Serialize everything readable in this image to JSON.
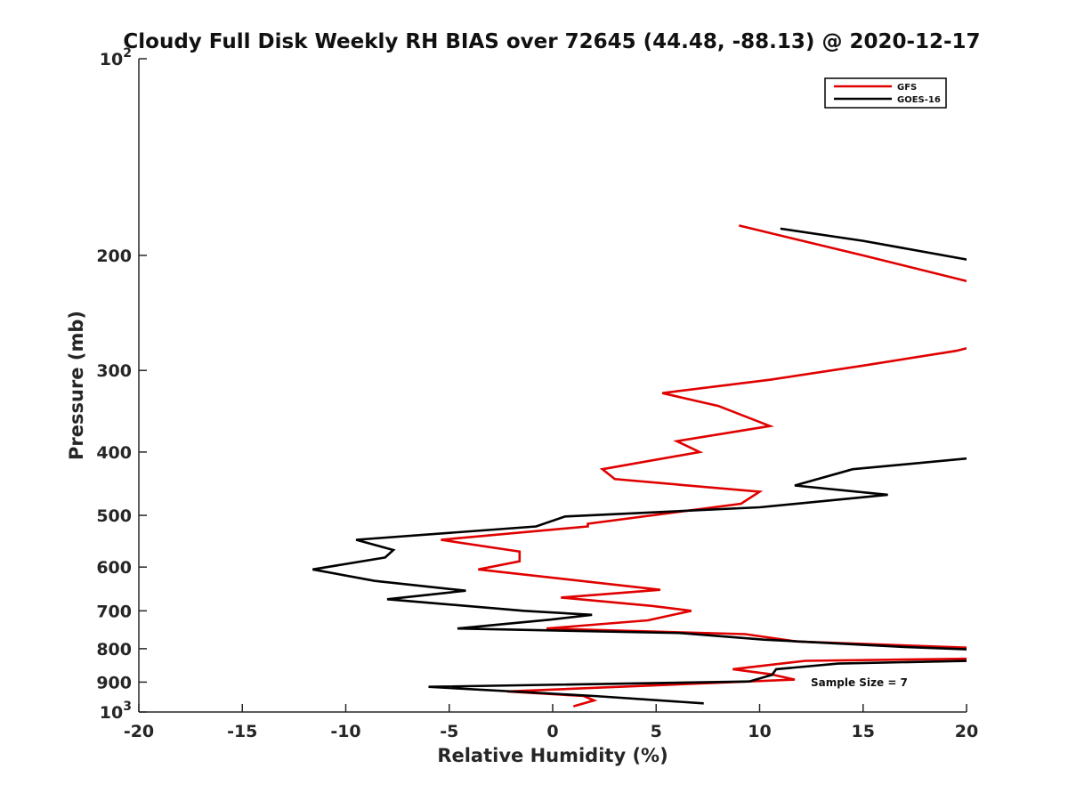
{
  "chart_data": {
    "type": "line",
    "title": "Cloudy Full Disk Weekly RH BIAS over 72645 (44.48, -88.13) @ 2020-12-17",
    "xlabel": "Relative Humidity (%)",
    "ylabel": "Pressure (mb)",
    "xlim": [
      -20,
      20
    ],
    "ylim": [
      1000,
      100
    ],
    "yscale": "log",
    "y_reversed": true,
    "grid": false,
    "legend_position": "top-right",
    "x_ticks": [
      "-20",
      "-15",
      "-10",
      "-5",
      "0",
      "5",
      "10",
      "15",
      "20"
    ],
    "y_ticks": [
      {
        "value": 100,
        "base": "10",
        "exp": "2"
      },
      {
        "value": 200,
        "label": "200"
      },
      {
        "value": 300,
        "label": "300"
      },
      {
        "value": 400,
        "label": "400"
      },
      {
        "value": 500,
        "label": "500"
      },
      {
        "value": 600,
        "label": "600"
      },
      {
        "value": 700,
        "label": "700"
      },
      {
        "value": 800,
        "label": "800"
      },
      {
        "value": 900,
        "label": "900"
      },
      {
        "value": 1000,
        "base": "10",
        "exp": "3"
      }
    ],
    "series": [
      {
        "name": "GFS",
        "color": "#e00000",
        "segments": [
          [
            [
              9.0,
              180
            ],
            [
              15.0,
              200
            ],
            [
              21.5,
              225
            ]
          ],
          [
            [
              21.5,
              270
            ],
            [
              19.5,
              280
            ],
            [
              15.0,
              295
            ],
            [
              10.5,
              310
            ],
            [
              5.3,
              325
            ],
            [
              8.0,
              340
            ],
            [
              10.5,
              365
            ],
            [
              6.0,
              385
            ],
            [
              7.1,
              400
            ],
            [
              2.4,
              425
            ],
            [
              3.0,
              440
            ],
            [
              10.0,
              460
            ],
            [
              9.1,
              480
            ],
            [
              1.7,
              515
            ],
            [
              1.7,
              520
            ],
            [
              -5.4,
              545
            ],
            [
              -1.6,
              568
            ],
            [
              -1.6,
              588
            ],
            [
              -3.6,
              605
            ],
            [
              5.2,
              650
            ],
            [
              0.4,
              668
            ],
            [
              4.8,
              688
            ],
            [
              6.7,
              700
            ],
            [
              4.6,
              724
            ],
            [
              -0.3,
              745
            ],
            [
              9.3,
              760
            ],
            [
              11.8,
              780
            ],
            [
              21.5,
              800
            ]
          ],
          [
            [
              21.5,
              828
            ],
            [
              12.2,
              835
            ],
            [
              8.7,
              860
            ],
            [
              10.5,
              875
            ],
            [
              11.7,
              892
            ],
            [
              -2.2,
              930
            ],
            [
              1.5,
              945
            ],
            [
              2.0,
              960
            ],
            [
              1.0,
              980
            ]
          ]
        ]
      },
      {
        "name": "GOES-16",
        "color": "#000000",
        "segments": [
          [
            [
              11.0,
              182
            ],
            [
              15.0,
              190
            ],
            [
              21.5,
              207
            ]
          ],
          [
            [
              21.5,
              405
            ],
            [
              14.5,
              425
            ],
            [
              11.7,
              450
            ],
            [
              16.2,
              465
            ],
            [
              10.0,
              486
            ],
            [
              0.6,
              502
            ],
            [
              -0.8,
              520
            ],
            [
              -9.5,
              545
            ],
            [
              -7.7,
              565
            ],
            [
              -8.1,
              580
            ],
            [
              -11.6,
              605
            ],
            [
              -8.6,
              630
            ],
            [
              -4.2,
              652
            ],
            [
              -8.0,
              672
            ],
            [
              -1.4,
              700
            ],
            [
              1.9,
              710
            ],
            [
              -0.1,
              722
            ],
            [
              -4.6,
              745
            ],
            [
              6.2,
              757
            ],
            [
              10.2,
              775
            ],
            [
              17.0,
              795
            ],
            [
              21.5,
              805
            ]
          ],
          [
            [
              21.5,
              833
            ],
            [
              13.8,
              843
            ],
            [
              10.8,
              860
            ],
            [
              10.6,
              877
            ],
            [
              9.5,
              898
            ],
            [
              -6.0,
              915
            ],
            [
              2.0,
              945
            ],
            [
              7.3,
              970
            ]
          ]
        ]
      }
    ],
    "annotation": "Sample Size = 7"
  }
}
